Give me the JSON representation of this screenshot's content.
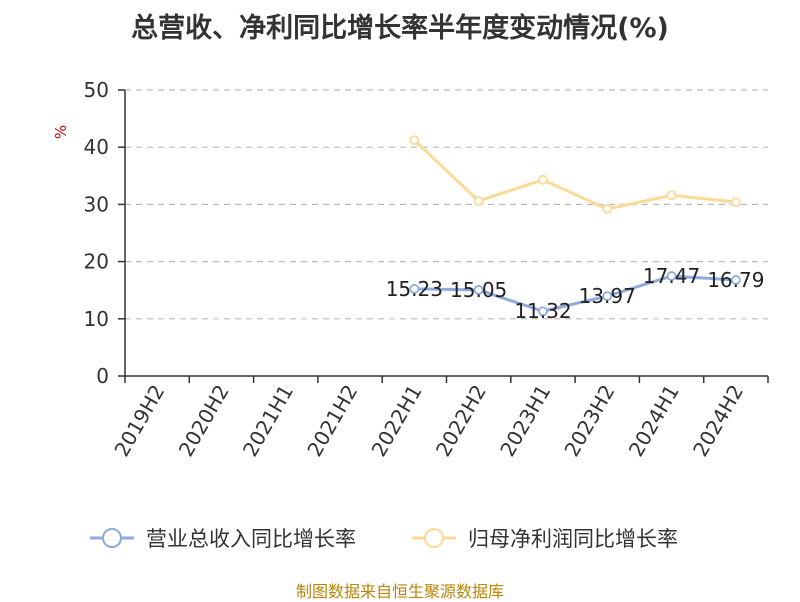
{
  "chart_data": {
    "type": "line",
    "title": "总营收、净利同比增长率半年度变动情况(%)",
    "ylabel": "%",
    "ylim": [
      0,
      50
    ],
    "yticks": [
      0,
      10,
      20,
      30,
      40,
      50
    ],
    "grid": true,
    "legend_position": "bottom",
    "categories": [
      "2019H2",
      "2020H2",
      "2021H1",
      "2021H2",
      "2022H1",
      "2022H2",
      "2023H1",
      "2023H2",
      "2024H1",
      "2024H2"
    ],
    "series": [
      {
        "name": "营业总收入同比增长率",
        "color": "#8faadc",
        "values": [
          null,
          null,
          null,
          null,
          15.23,
          15.05,
          11.32,
          13.97,
          17.47,
          16.79
        ],
        "labels": [
          "",
          "",
          "",
          "",
          "15.23",
          "15.05",
          "11.32",
          "13.97",
          "17.47",
          "16.79"
        ]
      },
      {
        "name": "归母净利润同比增长率",
        "color": "#fcd997",
        "values": [
          null,
          null,
          null,
          null,
          41.2,
          30.6,
          34.3,
          29.2,
          31.6,
          30.4
        ]
      }
    ]
  },
  "source": "制图数据来自恒生聚源数据库"
}
